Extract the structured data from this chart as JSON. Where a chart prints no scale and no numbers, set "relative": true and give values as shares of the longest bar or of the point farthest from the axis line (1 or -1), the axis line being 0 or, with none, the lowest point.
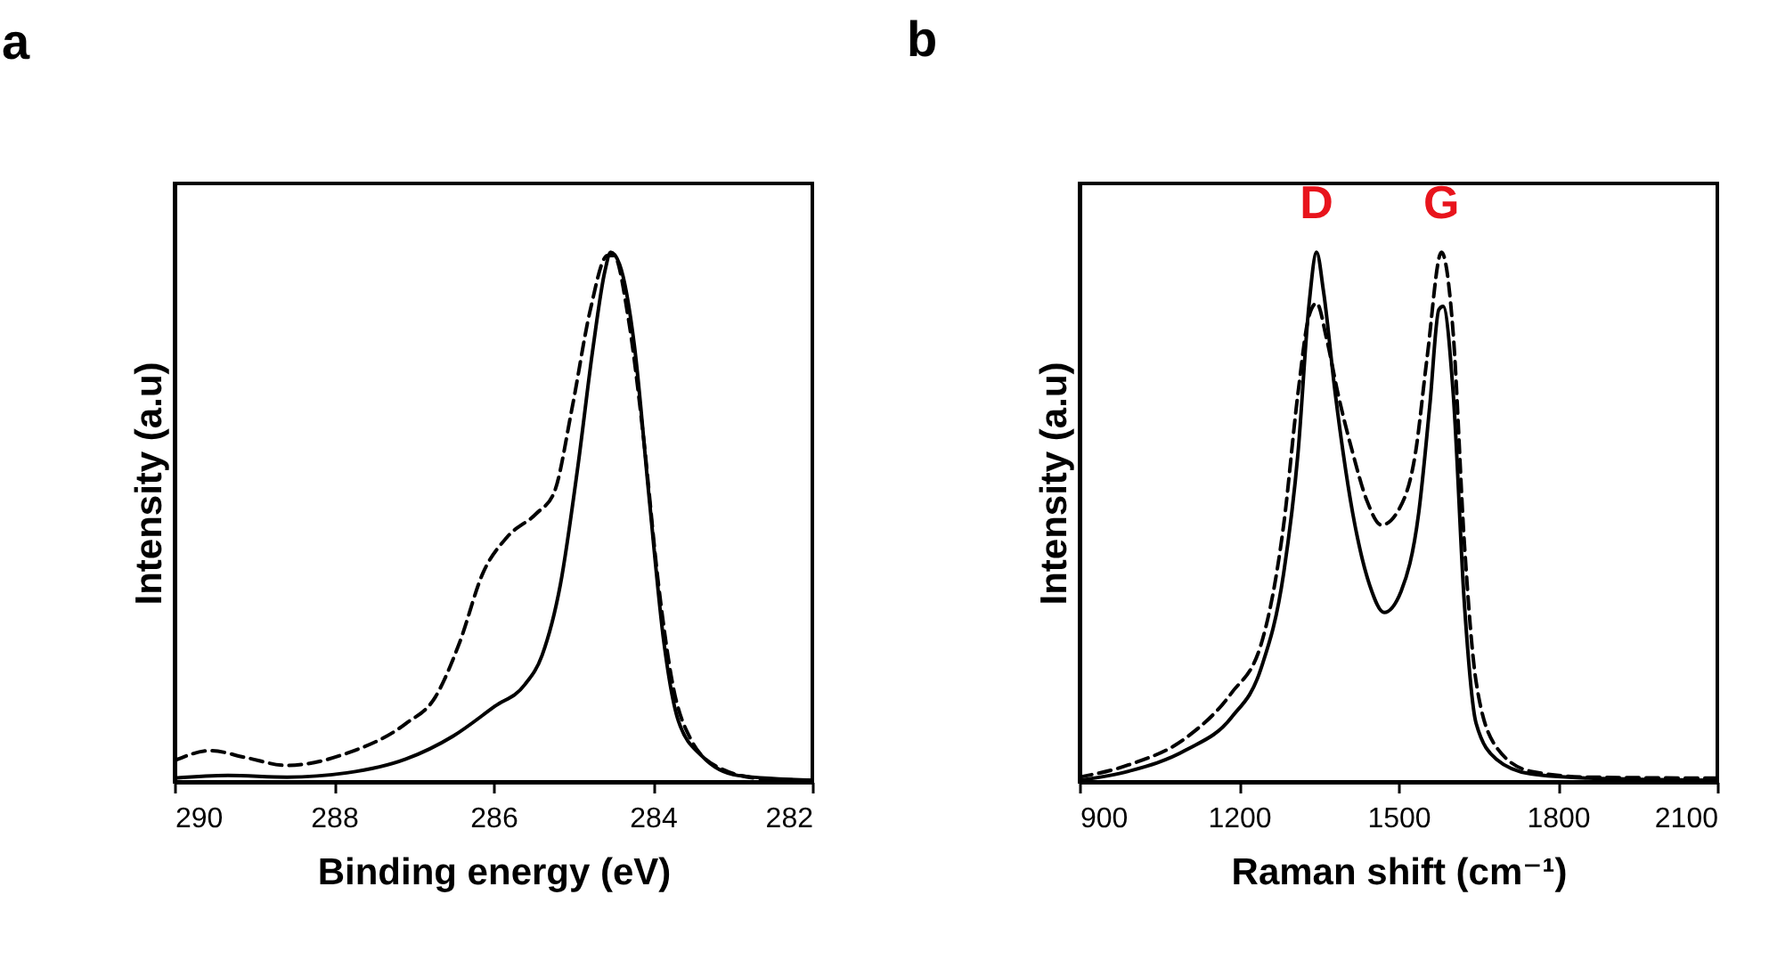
{
  "chart_data": [
    {
      "type": "line",
      "title": "a",
      "xlabel": "Binding energy (eV)",
      "ylabel": "Intensity (a.u)",
      "relative": true,
      "xlim": [
        290,
        282
      ],
      "xticks": [
        290,
        288,
        286,
        284,
        282
      ],
      "grid": false,
      "series": [
        {
          "color": "#000000",
          "line_style": "solid",
          "x": [
            290,
            289.33,
            288.59,
            287.84,
            287.1,
            286.5,
            285.98,
            285.61,
            285.39,
            285.16,
            284.94,
            284.75,
            284.6,
            284.53,
            284.42,
            284.23,
            284.05,
            283.86,
            283.68,
            283.38,
            282.93,
            282
          ],
          "values": [
            0.007,
            0.012,
            0.009,
            0.017,
            0.043,
            0.087,
            0.143,
            0.183,
            0.239,
            0.373,
            0.597,
            0.821,
            0.966,
            1,
            0.978,
            0.821,
            0.541,
            0.261,
            0.115,
            0.048,
            0.012,
            0.003
          ]
        },
        {
          "color": "#000000",
          "line_style": "dashed",
          "x": [
            290,
            289.55,
            289.11,
            288.59,
            287.84,
            287.1,
            286.73,
            286.43,
            286.13,
            285.83,
            285.46,
            285.24,
            285.01,
            284.79,
            284.57,
            284.49,
            284.31,
            284.12,
            283.93,
            283.75,
            283.53,
            283.16,
            282.63,
            282
          ],
          "values": [
            0.04,
            0.059,
            0.046,
            0.031,
            0.054,
            0.11,
            0.16,
            0.261,
            0.395,
            0.462,
            0.507,
            0.546,
            0.709,
            0.888,
            0.994,
            0.994,
            0.877,
            0.653,
            0.373,
            0.183,
            0.082,
            0.026,
            0.006,
            0.003
          ]
        }
      ]
    },
    {
      "type": "line",
      "title": "b",
      "xlabel": "Raman shift (cm⁻¹)",
      "ylabel": "Intensity (a.u)",
      "relative": true,
      "xlim": [
        900,
        2100
      ],
      "xticks": [
        900,
        1200,
        1500,
        1800,
        2100
      ],
      "grid": false,
      "annotations": [
        {
          "text": "D",
          "x": 1346,
          "y": 1
        },
        {
          "text": "G",
          "x": 1581,
          "y": 1
        }
      ],
      "series": [
        {
          "color": "#000000",
          "line_style": "solid",
          "x": [
            900,
            992,
            1100,
            1186,
            1241,
            1284,
            1311,
            1332,
            1346,
            1359,
            1381,
            1414,
            1446,
            1473,
            1505,
            1538,
            1559,
            1576,
            1584,
            1603,
            1624,
            1646,
            1684,
            1749,
            1857,
            2100
          ],
          "values": [
            0.003,
            0.02,
            0.06,
            0.122,
            0.213,
            0.394,
            0.621,
            0.904,
            1,
            0.926,
            0.734,
            0.507,
            0.371,
            0.32,
            0.36,
            0.507,
            0.711,
            0.892,
            0.898,
            0.734,
            0.337,
            0.111,
            0.043,
            0.015,
            0.007,
            0.003
          ]
        },
        {
          "color": "#000000",
          "line_style": "dashed",
          "x": [
            900,
            992,
            1100,
            1186,
            1241,
            1284,
            1311,
            1332,
            1346,
            1365,
            1386,
            1414,
            1441,
            1468,
            1500,
            1532,
            1554,
            1581,
            1603,
            1624,
            1646,
            1684,
            1749,
            1857,
            2100
          ],
          "values": [
            0.009,
            0.032,
            0.083,
            0.168,
            0.258,
            0.485,
            0.734,
            0.881,
            0.904,
            0.836,
            0.734,
            0.621,
            0.53,
            0.485,
            0.513,
            0.621,
            0.802,
            1,
            0.847,
            0.451,
            0.19,
            0.066,
            0.02,
            0.009,
            0.007
          ]
        }
      ]
    }
  ]
}
